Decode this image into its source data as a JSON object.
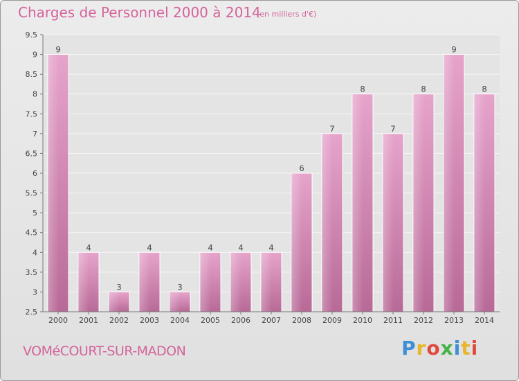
{
  "header": {
    "title": "Charges de Personnel 2000 à 2014",
    "unit": "(en milliers d'€)"
  },
  "footer": {
    "commune": "VOMéCOURT-SUR-MADON",
    "logo": [
      "P",
      "r",
      "o",
      "x",
      "i",
      "t",
      "i"
    ],
    "logo_colors": [
      "#3f8fd6",
      "#e8b52c",
      "#e04a3d",
      "#45b24a",
      "#3f8fd6",
      "#e8b52c",
      "#e04a3d"
    ]
  },
  "chart_data": {
    "type": "bar",
    "title": "Charges de Personnel 2000 à 2014",
    "subtitle": "(en milliers d'€)",
    "categories": [
      "2000",
      "2001",
      "2002",
      "2003",
      "2004",
      "2005",
      "2006",
      "2007",
      "2008",
      "2009",
      "2010",
      "2011",
      "2012",
      "2013",
      "2014"
    ],
    "values": [
      9,
      4,
      3,
      4,
      3,
      4,
      4,
      4,
      6,
      7,
      8,
      7,
      8,
      9,
      8
    ],
    "ylim": [
      2.5,
      9.5
    ],
    "yticks": [
      "2.5",
      "3",
      "3.5",
      "4",
      "4.5",
      "5",
      "5.5",
      "6",
      "6.5",
      "7",
      "7.5",
      "8",
      "8.5",
      "9",
      "9.5"
    ],
    "grid": true,
    "bar_color": "#c873a4"
  }
}
